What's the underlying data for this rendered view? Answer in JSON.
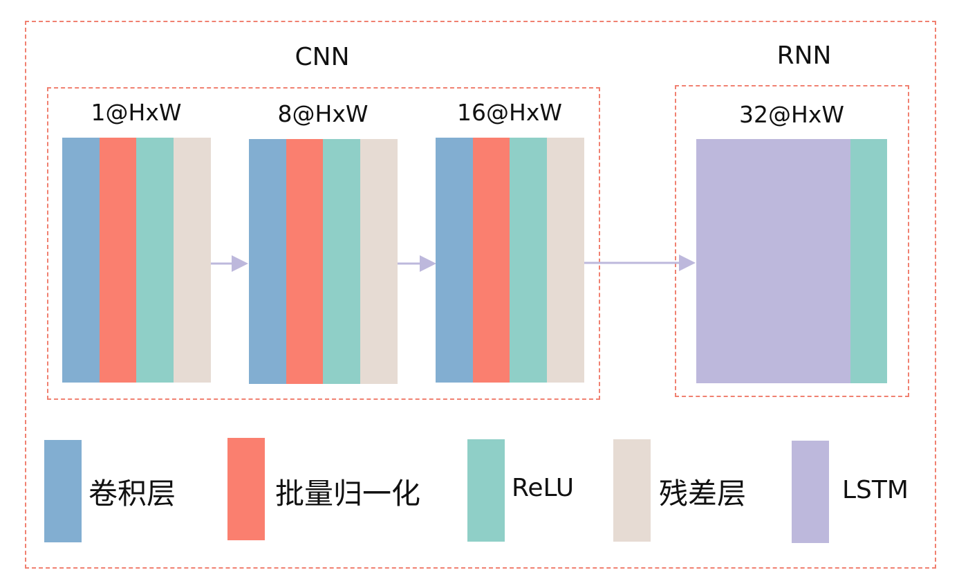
{
  "colors": {
    "border": "#f08070",
    "conv": "#82aed1",
    "bn": "#fa7f6f",
    "relu": "#8fcfc7",
    "residual": "#e6dbd3",
    "lstm": "#bdb8dc",
    "arrow": "#bdb8dc"
  },
  "titles": {
    "cnn": "CNN",
    "rnn": "RNN"
  },
  "cnn_blocks": [
    {
      "label": "1@HxW",
      "layers": [
        "conv",
        "bn",
        "relu",
        "residual"
      ]
    },
    {
      "label": "8@HxW",
      "layers": [
        "conv",
        "bn",
        "relu",
        "residual"
      ]
    },
    {
      "label": "16@HxW",
      "layers": [
        "conv",
        "bn",
        "relu",
        "residual"
      ]
    }
  ],
  "rnn_block": {
    "label": "32@HxW",
    "layers": [
      "lstm",
      "relu"
    ]
  },
  "legend": [
    {
      "key": "conv",
      "label": "卷积层"
    },
    {
      "key": "bn",
      "label": "批量归一化"
    },
    {
      "key": "relu",
      "label": "ReLU"
    },
    {
      "key": "residual",
      "label": "残差层"
    },
    {
      "key": "lstm",
      "label": "LSTM"
    }
  ]
}
